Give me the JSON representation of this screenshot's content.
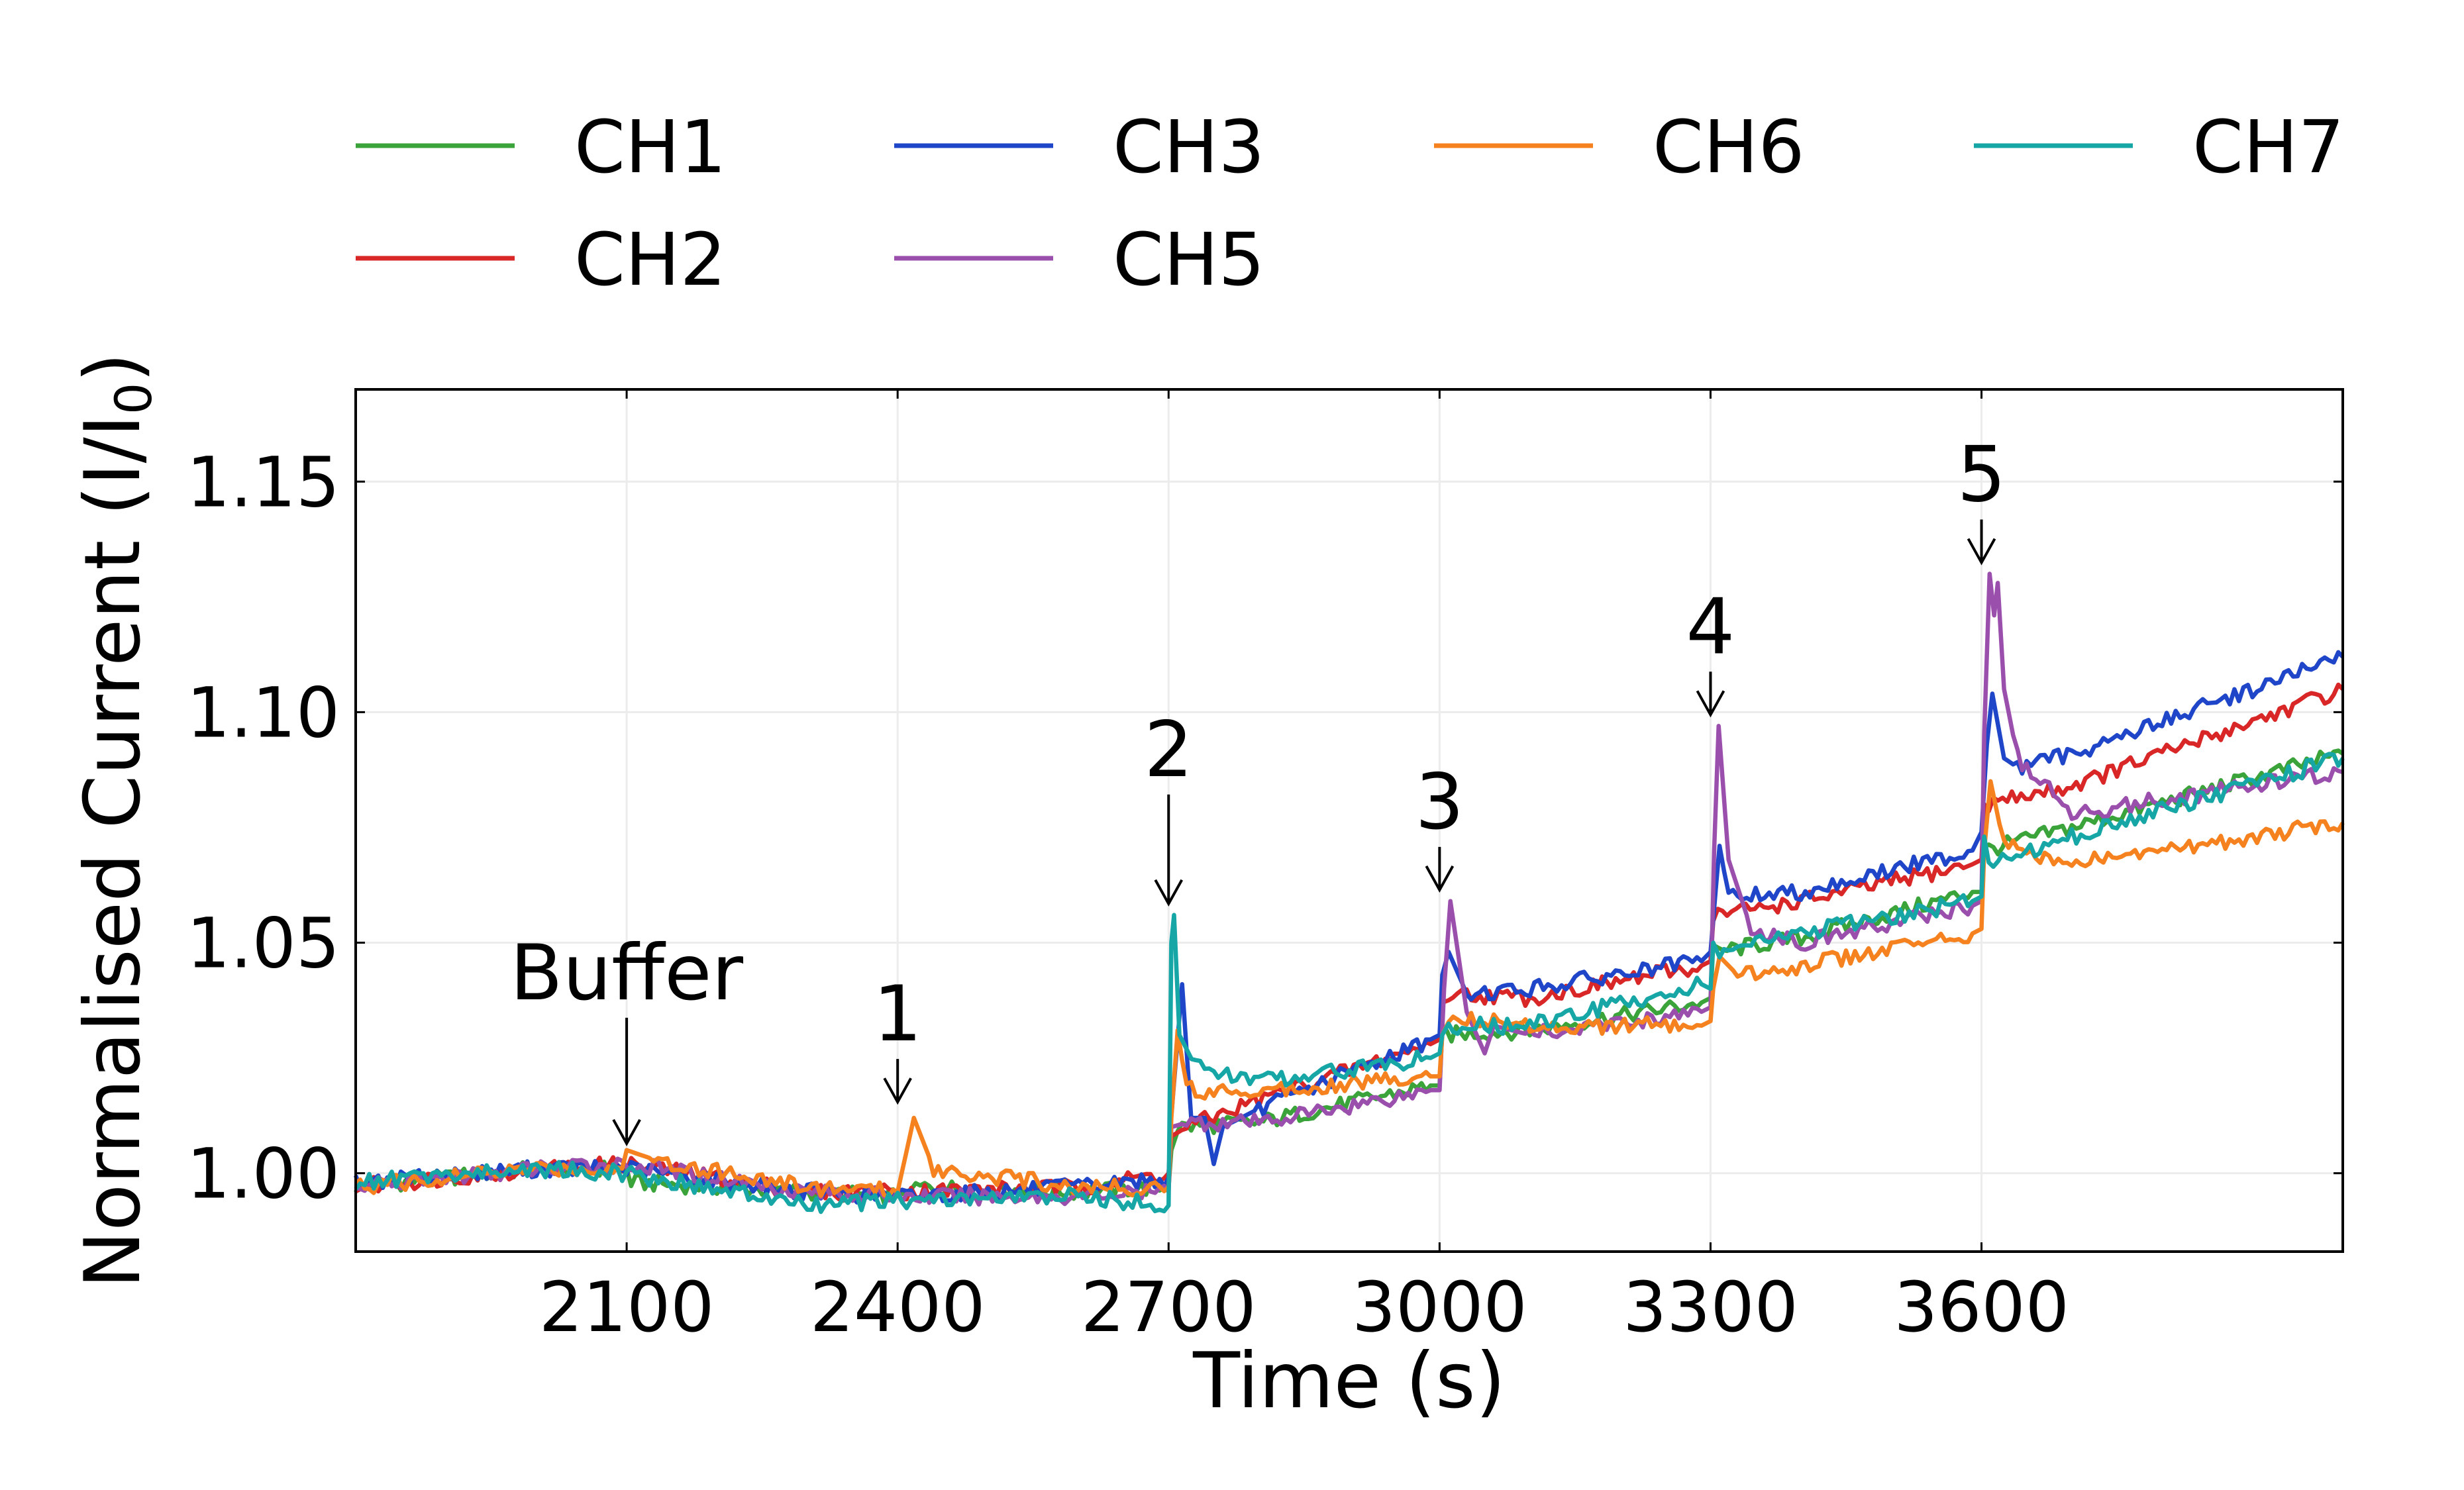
{
  "chart_data": {
    "type": "line",
    "xlabel": "Time (s)",
    "ylabel_prefix": "Normalised Current (I/I",
    "ylabel_sub": "0",
    "ylabel_suffix": ")",
    "xlim": [
      1800,
      4000
    ],
    "ylim": [
      0.983,
      1.17
    ],
    "x_ticks": [
      2100,
      2400,
      2700,
      3000,
      3300,
      3600
    ],
    "x_tick_labels": [
      "2100",
      "2400",
      "2700",
      "3000",
      "3300",
      "3600"
    ],
    "y_ticks": [
      1.0,
      1.05,
      1.1,
      1.15
    ],
    "y_tick_labels": [
      "1.00",
      "1.05",
      "1.10",
      "1.15"
    ],
    "grid": true,
    "legend_position": "top",
    "series": [
      {
        "name": "CH1",
        "color": "#3aa33a",
        "points": [
          [
            1800,
            0.997
          ],
          [
            2000,
            1.001
          ],
          [
            2100,
            1.001
          ],
          [
            2105,
            0.998
          ],
          [
            2300,
            0.996
          ],
          [
            2400,
            0.995
          ],
          [
            2420,
            0.997
          ],
          [
            2600,
            0.996
          ],
          [
            2700,
            0.997
          ],
          [
            2703,
            1.005
          ],
          [
            2710,
            1.01
          ],
          [
            2800,
            1.011
          ],
          [
            2990,
            1.019
          ],
          [
            3000,
            1.019
          ],
          [
            3003,
            1.03
          ],
          [
            3100,
            1.031
          ],
          [
            3290,
            1.037
          ],
          [
            3300,
            1.038
          ],
          [
            3303,
            1.048
          ],
          [
            3400,
            1.051
          ],
          [
            3590,
            1.061
          ],
          [
            3600,
            1.061
          ],
          [
            3603,
            1.07
          ],
          [
            3700,
            1.075
          ],
          [
            4000,
            1.091
          ]
        ]
      },
      {
        "name": "CH2",
        "color": "#d92626",
        "points": [
          [
            1800,
            0.997
          ],
          [
            2000,
            1.001
          ],
          [
            2100,
            1.002
          ],
          [
            2300,
            0.996
          ],
          [
            2400,
            0.996
          ],
          [
            2600,
            0.997
          ],
          [
            2700,
            1.0
          ],
          [
            2703,
            1.008
          ],
          [
            2720,
            1.01
          ],
          [
            2800,
            1.016
          ],
          [
            2990,
            1.028
          ],
          [
            3000,
            1.029
          ],
          [
            3003,
            1.037
          ],
          [
            3010,
            1.039
          ],
          [
            3100,
            1.038
          ],
          [
            3290,
            1.045
          ],
          [
            3300,
            1.046
          ],
          [
            3303,
            1.056
          ],
          [
            3400,
            1.059
          ],
          [
            3590,
            1.067
          ],
          [
            3600,
            1.068
          ],
          [
            3603,
            1.08
          ],
          [
            3700,
            1.084
          ],
          [
            4000,
            1.105
          ]
        ]
      },
      {
        "name": "CH3",
        "color": "#1f45c8",
        "points": [
          [
            1800,
            0.998
          ],
          [
            2000,
            1.001
          ],
          [
            2100,
            1.001
          ],
          [
            2300,
            0.996
          ],
          [
            2400,
            0.995
          ],
          [
            2600,
            0.997
          ],
          [
            2700,
            0.999
          ],
          [
            2702,
            1.01
          ],
          [
            2715,
            1.041
          ],
          [
            2725,
            1.012
          ],
          [
            2740,
            1.012
          ],
          [
            2750,
            1.002
          ],
          [
            2760,
            1.01
          ],
          [
            2800,
            1.014
          ],
          [
            2990,
            1.029
          ],
          [
            3000,
            1.03
          ],
          [
            3003,
            1.043
          ],
          [
            3010,
            1.048
          ],
          [
            3030,
            1.039
          ],
          [
            3100,
            1.04
          ],
          [
            3290,
            1.046
          ],
          [
            3300,
            1.048
          ],
          [
            3306,
            1.062
          ],
          [
            3310,
            1.071
          ],
          [
            3320,
            1.06
          ],
          [
            3400,
            1.061
          ],
          [
            3590,
            1.07
          ],
          [
            3600,
            1.074
          ],
          [
            3606,
            1.093
          ],
          [
            3612,
            1.104
          ],
          [
            3625,
            1.09
          ],
          [
            3640,
            1.088
          ],
          [
            3700,
            1.091
          ],
          [
            4000,
            1.112
          ]
        ]
      },
      {
        "name": "CH5",
        "color": "#9b4fad",
        "points": [
          [
            1800,
            0.997
          ],
          [
            2000,
            1.001
          ],
          [
            2100,
            1.002
          ],
          [
            2300,
            0.996
          ],
          [
            2400,
            0.995
          ],
          [
            2600,
            0.995
          ],
          [
            2700,
            0.996
          ],
          [
            2703,
            1.01
          ],
          [
            2720,
            1.011
          ],
          [
            2800,
            1.011
          ],
          [
            2990,
            1.018
          ],
          [
            3000,
            1.018
          ],
          [
            3005,
            1.04
          ],
          [
            3012,
            1.059
          ],
          [
            3030,
            1.035
          ],
          [
            3050,
            1.026
          ],
          [
            3060,
            1.032
          ],
          [
            3100,
            1.03
          ],
          [
            3290,
            1.035
          ],
          [
            3300,
            1.036
          ],
          [
            3304,
            1.07
          ],
          [
            3309,
            1.097
          ],
          [
            3320,
            1.068
          ],
          [
            3345,
            1.053
          ],
          [
            3400,
            1.05
          ],
          [
            3590,
            1.058
          ],
          [
            3600,
            1.059
          ],
          [
            3603,
            1.095
          ],
          [
            3609,
            1.13
          ],
          [
            3614,
            1.121
          ],
          [
            3618,
            1.128
          ],
          [
            3625,
            1.105
          ],
          [
            3640,
            1.09
          ],
          [
            3700,
            1.078
          ],
          [
            4000,
            1.087
          ]
        ]
      },
      {
        "name": "CH6",
        "color": "#f5821f",
        "points": [
          [
            1800,
            0.997
          ],
          [
            2000,
            1.001
          ],
          [
            2095,
            1.001
          ],
          [
            2100,
            1.005
          ],
          [
            2130,
            1.003
          ],
          [
            2300,
            0.997
          ],
          [
            2400,
            0.996
          ],
          [
            2418,
            1.012
          ],
          [
            2440,
            1.001
          ],
          [
            2600,
            0.997
          ],
          [
            2700,
            0.997
          ],
          [
            2703,
            1.012
          ],
          [
            2710,
            1.031
          ],
          [
            2720,
            1.018
          ],
          [
            2800,
            1.018
          ],
          [
            2990,
            1.021
          ],
          [
            3000,
            1.021
          ],
          [
            3003,
            1.03
          ],
          [
            3010,
            1.034
          ],
          [
            3100,
            1.032
          ],
          [
            3290,
            1.032
          ],
          [
            3300,
            1.033
          ],
          [
            3303,
            1.04
          ],
          [
            3310,
            1.047
          ],
          [
            3330,
            1.043
          ],
          [
            3400,
            1.045
          ],
          [
            3590,
            1.052
          ],
          [
            3600,
            1.053
          ],
          [
            3603,
            1.07
          ],
          [
            3610,
            1.085
          ],
          [
            3625,
            1.071
          ],
          [
            3700,
            1.067
          ],
          [
            4000,
            1.076
          ]
        ]
      },
      {
        "name": "CH7",
        "color": "#17a6a6",
        "points": [
          [
            1800,
            0.998
          ],
          [
            2000,
            1.001
          ],
          [
            2100,
            1.0
          ],
          [
            2300,
            0.993
          ],
          [
            2400,
            0.994
          ],
          [
            2600,
            0.995
          ],
          [
            2700,
            0.993
          ],
          [
            2703,
            1.05
          ],
          [
            2706,
            1.056
          ],
          [
            2712,
            1.03
          ],
          [
            2730,
            1.023
          ],
          [
            2800,
            1.02
          ],
          [
            2990,
            1.025
          ],
          [
            3000,
            1.026
          ],
          [
            3003,
            1.03
          ],
          [
            3010,
            1.032
          ],
          [
            3100,
            1.032
          ],
          [
            3290,
            1.041
          ],
          [
            3300,
            1.04
          ],
          [
            3303,
            1.05
          ],
          [
            3310,
            1.048
          ],
          [
            3400,
            1.052
          ],
          [
            3590,
            1.059
          ],
          [
            3600,
            1.06
          ],
          [
            3603,
            1.073
          ],
          [
            3608,
            1.067
          ],
          [
            3700,
            1.073
          ],
          [
            4000,
            1.09
          ]
        ]
      }
    ],
    "annotations": [
      {
        "label": "Buffer",
        "x": 2100,
        "y": 1.005
      },
      {
        "label": "1",
        "x": 2400,
        "y": 1.014
      },
      {
        "label": "2",
        "x": 2700,
        "y": 1.057
      },
      {
        "label": "3",
        "x": 3000,
        "y": 1.06
      },
      {
        "label": "4",
        "x": 3300,
        "y": 1.098
      },
      {
        "label": "5",
        "x": 3600,
        "y": 1.131
      }
    ]
  }
}
